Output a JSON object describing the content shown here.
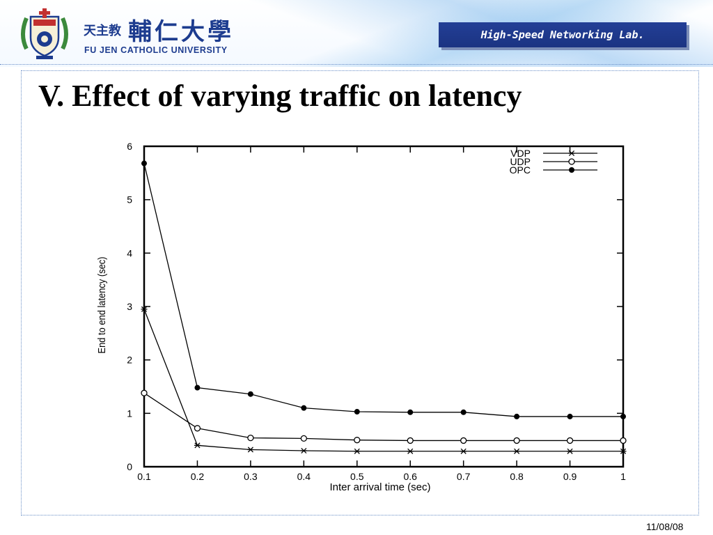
{
  "header": {
    "university_cn_small": "天主教",
    "university_cn": "輔仁大學",
    "university_en": "FU JEN CATHOLIC UNIVERSITY",
    "lab_name": "High-Speed Networking Lab."
  },
  "slide": {
    "title": "V. Effect of varying traffic on latency"
  },
  "footer": {
    "date": "11/08/08"
  },
  "colors": {
    "brand_blue": "#1d3c8f",
    "badge_blue": "#233f96",
    "badge_shadow": "#7d8fb8",
    "frame_dots": "#6a8fc7",
    "line": "#000000"
  },
  "chart_data": {
    "type": "line",
    "title": "",
    "xlabel": "Inter arrival time (sec)",
    "ylabel": "End to end latency (sec)",
    "xlim": [
      0.1,
      1
    ],
    "ylim": [
      0,
      6
    ],
    "x_ticks": [
      "0.1",
      "0.2",
      "0.3",
      "0.4",
      "0.5",
      "0.6",
      "0.7",
      "0.8",
      "0.9",
      "1"
    ],
    "y_ticks": [
      "0",
      "1",
      "2",
      "3",
      "4",
      "5",
      "6"
    ],
    "grid": false,
    "legend_position": "top-right",
    "x": [
      0.1,
      0.2,
      0.3,
      0.4,
      0.5,
      0.6,
      0.7,
      0.8,
      0.9,
      1.0
    ],
    "series": [
      {
        "name": "VDP",
        "marker": "star",
        "values": [
          2.95,
          0.4,
          0.32,
          0.3,
          0.29,
          0.29,
          0.29,
          0.29,
          0.29,
          0.29
        ]
      },
      {
        "name": "UDP",
        "marker": "circle-open",
        "values": [
          1.38,
          0.72,
          0.54,
          0.53,
          0.5,
          0.49,
          0.49,
          0.49,
          0.49,
          0.49
        ]
      },
      {
        "name": "OPC",
        "marker": "circle-filled",
        "values": [
          5.68,
          1.48,
          1.36,
          1.1,
          1.03,
          1.02,
          1.02,
          0.94,
          0.94,
          0.94
        ]
      }
    ]
  }
}
